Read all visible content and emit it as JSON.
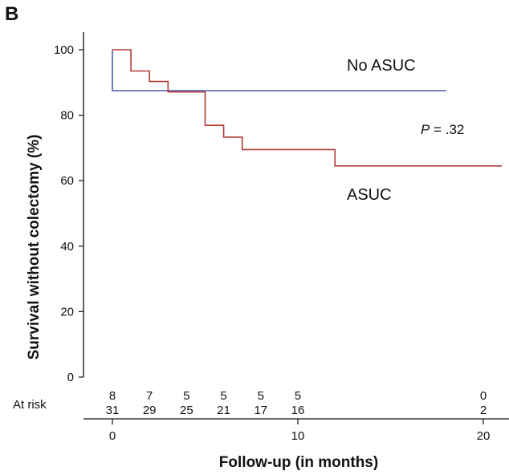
{
  "panel_label": "B",
  "chart_data": {
    "type": "line",
    "step": true,
    "title": "",
    "xlabel": "Follow-up (in months)",
    "ylabel": "Survival without colectomy (%)",
    "xlim": [
      -1.5,
      21
    ],
    "ylim": [
      0,
      100
    ],
    "x_ticks": [
      0,
      10,
      20
    ],
    "y_ticks": [
      0,
      20,
      40,
      60,
      80,
      100
    ],
    "grid": false,
    "series": [
      {
        "name": "No ASUC",
        "color": "#4a5aa8",
        "points": [
          [
            0,
            100
          ],
          [
            0,
            87.5
          ],
          [
            18,
            87.5
          ]
        ]
      },
      {
        "name": "ASUC",
        "color": "#b03a33",
        "points": [
          [
            0,
            100
          ],
          [
            1,
            100
          ],
          [
            1,
            93.5
          ],
          [
            2,
            93.5
          ],
          [
            2,
            90.3
          ],
          [
            3,
            90.3
          ],
          [
            3,
            87.1
          ],
          [
            5,
            87.1
          ],
          [
            5,
            76.9
          ],
          [
            6,
            76.9
          ],
          [
            6,
            73.3
          ],
          [
            7,
            73.3
          ],
          [
            7,
            69.5
          ],
          [
            12,
            69.5
          ],
          [
            12,
            64.5
          ],
          [
            21,
            64.5
          ]
        ]
      }
    ],
    "annotations": [
      {
        "text": "No ASUC"
      },
      {
        "text": "ASUC"
      }
    ],
    "p_value": {
      "symbol": "P",
      "text": " = .32"
    },
    "at_risk": {
      "label": "At risk",
      "x": [
        0,
        3,
        5.1,
        6,
        7,
        8
      ],
      "times": [
        0,
        2,
        4,
        6,
        8,
        10,
        20
      ],
      "rows": [
        {
          "name": "No ASUC",
          "values": [
            "8",
            "7",
            "5",
            "5",
            "5",
            "5",
            "0"
          ]
        },
        {
          "name": "ASUC",
          "values": [
            "31",
            "29",
            "25",
            "21",
            "17",
            "16",
            "2"
          ]
        }
      ]
    }
  }
}
